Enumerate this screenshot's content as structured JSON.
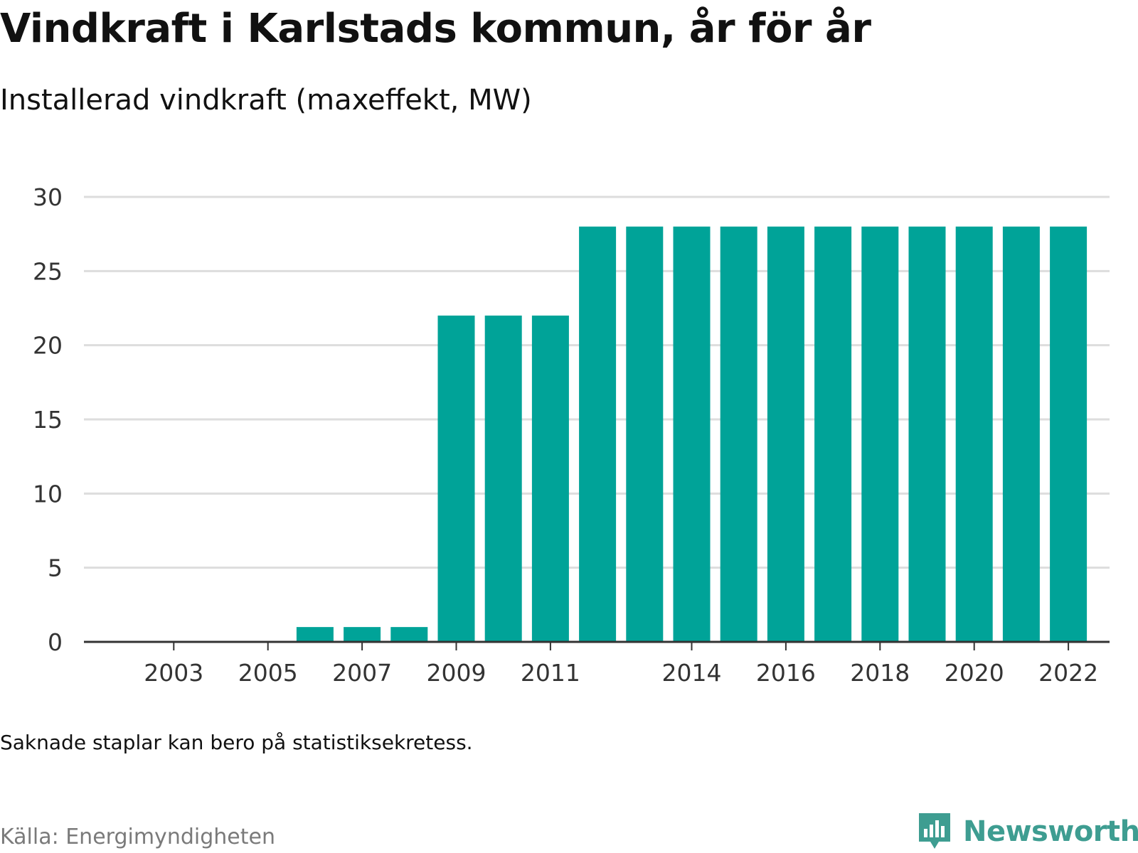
{
  "header": {
    "title": "Vindkraft i Karlstads kommun, år för år",
    "subtitle": "Installerad vindkraft (maxeffekt, MW)"
  },
  "footer": {
    "note": "Saknade staplar kan bero på statistiksekretess.",
    "source": "Källa: Energimyndigheten",
    "logo_text": "Newsworthy"
  },
  "colors": {
    "bar": "#00a398",
    "grid": "#dddddd",
    "axis": "#333333",
    "logo": "#3e9d91"
  },
  "chart_data": {
    "type": "bar",
    "title": "Vindkraft i Karlstads kommun, år för år",
    "subtitle": "Installerad vindkraft (maxeffekt, MW)",
    "categories": [
      "2002",
      "2003",
      "2004",
      "2005",
      "2006",
      "2007",
      "2008",
      "2009",
      "2010",
      "2011",
      "2012",
      "2013",
      "2014",
      "2015",
      "2016",
      "2017",
      "2018",
      "2019",
      "2020",
      "2021",
      "2022"
    ],
    "values": [
      0,
      0,
      0,
      0,
      1,
      1,
      1,
      22,
      22,
      22,
      28,
      28,
      28,
      28,
      28,
      28,
      28,
      28,
      28,
      28,
      28
    ],
    "x_tick_labels": [
      "2003",
      "2005",
      "2007",
      "2009",
      "2011",
      "2014",
      "2016",
      "2018",
      "2020",
      "2022"
    ],
    "y_ticks": [
      0,
      5,
      10,
      15,
      20,
      25,
      30
    ],
    "ylim": [
      0,
      30
    ],
    "xlabel": "",
    "ylabel": "",
    "grid": true
  }
}
